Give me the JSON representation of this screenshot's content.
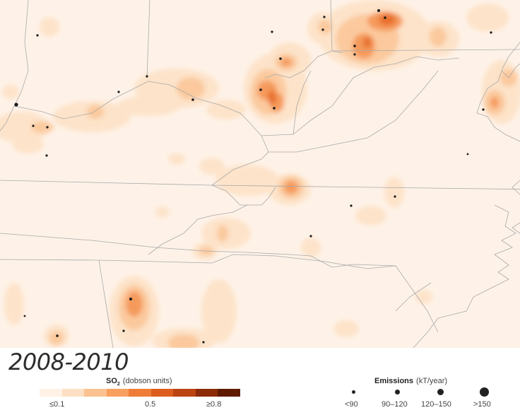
{
  "period_label": "2008-2010",
  "so2_legend": {
    "title_main": "SO",
    "title_sub": "2",
    "units": "(dobson units)",
    "ticks": [
      "≤0.1",
      "0.5",
      "≥0.8"
    ],
    "colors": [
      "#fff2e5",
      "#fde0c3",
      "#fbc290",
      "#f8a05f",
      "#ef7d37",
      "#dd5d1d",
      "#bb4410",
      "#8b2c06",
      "#5e1b02"
    ]
  },
  "emissions_legend": {
    "title": "Emissions",
    "units": "(kT/year)",
    "classes": [
      "<90",
      "90–120",
      "120–150",
      ">150"
    ]
  },
  "map_colors": {
    "background": "#fef2e8",
    "border": "#a9a9a9",
    "plant_dot": "#1a1a1a"
  }
}
